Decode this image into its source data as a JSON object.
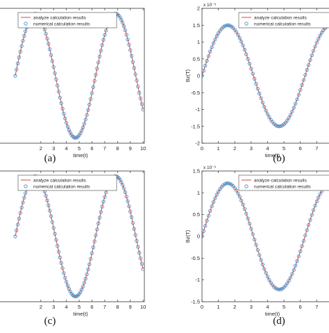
{
  "chart_data": [
    {
      "id": "a",
      "type": "line",
      "caption": "(a)",
      "xlabel": "time(t)",
      "ylabel": "",
      "exponent": "",
      "xlim": [
        -1.3,
        10.1
      ],
      "ylim": [
        -1,
        1
      ],
      "xticks": [
        2,
        3,
        4,
        5,
        6,
        7,
        8,
        9,
        10
      ],
      "yticks": [],
      "ytick_labels": [],
      "amplitude": 0.92,
      "legend": [
        "analyze calculation results",
        "numerical calculation results"
      ],
      "legend_position": "top",
      "series": [
        {
          "name": "analyze calculation results",
          "style": "line",
          "color": "#e0453a",
          "function": "A*sin(t)",
          "t_range": [
            0,
            10
          ]
        },
        {
          "name": "numerical calculation results",
          "style": "circle-markers",
          "color": "#3a88c4",
          "function": "A*sin(t)",
          "t_range": [
            0,
            10
          ],
          "step": 0.1
        }
      ]
    },
    {
      "id": "b",
      "type": "line",
      "caption": "(b)",
      "xlabel": "time(t)",
      "ylabel": "Bz(T)",
      "exponent": "x 10⁻³",
      "xlim": [
        0,
        8
      ],
      "ylim": [
        -2,
        2
      ],
      "xticks": [
        0,
        1,
        2,
        3,
        4,
        5,
        6,
        7
      ],
      "yticks": [
        -2,
        -1.5,
        -1,
        -0.5,
        0,
        0.5,
        1,
        1.5,
        2
      ],
      "ytick_labels": [
        "-2",
        "-1.5",
        "-1",
        "-0.5",
        "0",
        "0.5",
        "1",
        "1.5",
        "2"
      ],
      "amplitude": 1.5,
      "legend": [
        "analyze calculation results",
        "numerical calculation results"
      ],
      "legend_position": "top",
      "series": [
        {
          "name": "analyze calculation results",
          "style": "line",
          "color": "#e0453a",
          "function": "A*sin(t)",
          "t_range": [
            0,
            8
          ]
        },
        {
          "name": "numerical calculation results",
          "style": "circle-markers",
          "color": "#3a88c4",
          "function": "A*sin(t)",
          "t_range": [
            0,
            8
          ],
          "step": 0.1
        }
      ]
    },
    {
      "id": "c",
      "type": "line",
      "caption": "(c)",
      "xlabel": "time(t)",
      "ylabel": "",
      "exponent": "",
      "xlim": [
        -1.3,
        10.1
      ],
      "ylim": [
        -1,
        1
      ],
      "xticks": [
        2,
        3,
        4,
        5,
        6,
        7,
        8,
        9,
        10
      ],
      "yticks": [],
      "ytick_labels": [],
      "amplitude": 0.92,
      "legend": [
        "analyze calculation results",
        "numerical calculation results"
      ],
      "legend_position": "top",
      "series": [
        {
          "name": "analyze calculation results",
          "style": "line",
          "color": "#e0453a",
          "function": "A*sin(t)",
          "t_range": [
            0,
            10
          ]
        },
        {
          "name": "numerical calculation results",
          "style": "circle-markers",
          "color": "#3a88c4",
          "function": "A*sin(t)",
          "t_range": [
            0,
            10
          ],
          "step": 0.1
        }
      ]
    },
    {
      "id": "d",
      "type": "line",
      "caption": "(d)",
      "xlabel": "time(t)",
      "ylabel": "Bz(T)",
      "exponent": "x 10⁻³",
      "xlim": [
        0,
        8
      ],
      "ylim": [
        -1.5,
        1.5
      ],
      "xticks": [
        0,
        1,
        2,
        3,
        4,
        5,
        6,
        7
      ],
      "yticks": [
        -1.5,
        -1,
        -0.5,
        0,
        0.5,
        1,
        1.5
      ],
      "ytick_labels": [
        "-1.5",
        "-1",
        "-0.5",
        "0",
        "0.5",
        "1",
        "1.5"
      ],
      "amplitude": 1.22,
      "legend": [
        "analyze calculation results",
        "numerical calculation results"
      ],
      "legend_position": "top",
      "series": [
        {
          "name": "analyze calculation results",
          "style": "line",
          "color": "#e0453a",
          "function": "A*sin(t)",
          "t_range": [
            0,
            8
          ]
        },
        {
          "name": "numerical calculation results",
          "style": "circle-markers",
          "color": "#3a88c4",
          "function": "A*sin(t)",
          "t_range": [
            0,
            8
          ],
          "step": 0.1
        }
      ]
    }
  ]
}
